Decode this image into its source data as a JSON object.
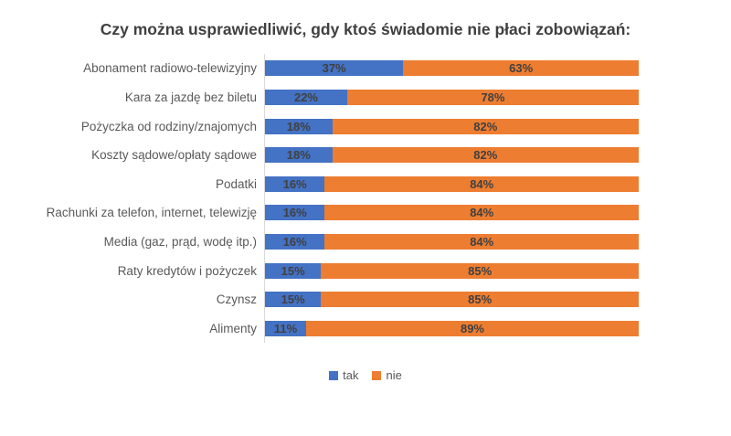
{
  "title": "Czy można usprawiedliwić, gdy ktoś świadomie nie płaci zobowiązań:",
  "colors": {
    "tak": "#4472C4",
    "nie": "#ED7D31",
    "title_text": "#404040",
    "category_text": "#595959",
    "data_label_text": "#404040",
    "axis_line": "#D9D9D9"
  },
  "legend": {
    "items": [
      {
        "label": "tak",
        "color": "#4472C4"
      },
      {
        "label": "nie",
        "color": "#ED7D31"
      }
    ],
    "position": "bottom-center"
  },
  "chart_data": {
    "type": "bar",
    "orientation": "horizontal",
    "stacked": true,
    "unit": "%",
    "title": "Czy można usprawiedliwić, gdy ktoś świadomie nie płaci zobowiązań:",
    "categories": [
      "Abonament radiowo-telewizyjny",
      "Kara za jazdę bez biletu",
      "Pożyczka od rodziny/znajomych",
      "Koszty sądowe/opłaty sądowe",
      "Podatki",
      "Rachunki za telefon, internet, telewizję",
      "Media (gaz, prąd, wodę itp.)",
      "Raty kredytów i pożyczek",
      "Czynsz",
      "Alimenty"
    ],
    "series": [
      {
        "name": "tak",
        "color": "#4472C4",
        "values": [
          37,
          22,
          18,
          18,
          16,
          16,
          16,
          15,
          15,
          11
        ]
      },
      {
        "name": "nie",
        "color": "#ED7D31",
        "values": [
          63,
          78,
          82,
          82,
          84,
          84,
          84,
          85,
          85,
          89
        ]
      }
    ],
    "xlim": [
      0,
      100
    ],
    "grid": false,
    "data_labels": "inside-center",
    "legend_position": "bottom"
  }
}
